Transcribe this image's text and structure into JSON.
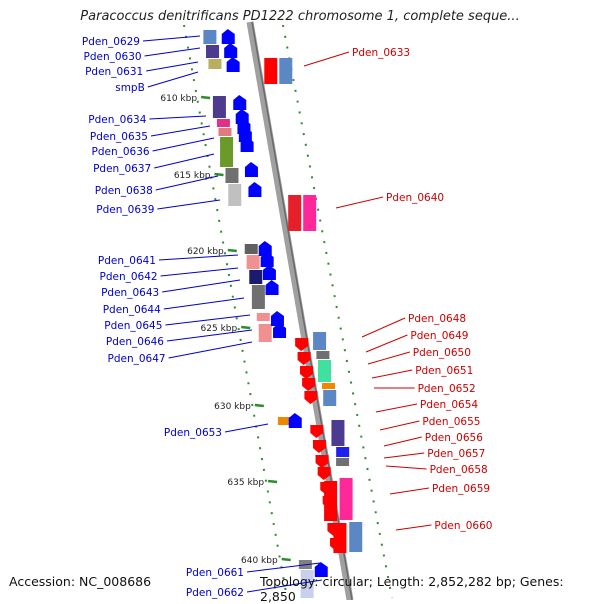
{
  "title": "Paracoccus denitrificans PD1222 chromosome 1, complete seque...",
  "accession_label": "Accession: NC_008686",
  "topology_label": "Topology: circular; Length: 2,852,282 bp; Genes: 2,850",
  "colors": {
    "left_label": "#0000cc",
    "right_label": "#cc0000",
    "backbone": "#8c8c8c",
    "kbp_tick": "#2e8b2e",
    "strand_forward_arrow": "#0000ff",
    "strand_reverse_arrow": "#ff0000"
  },
  "kbp_markers": [
    "610 kbp",
    "615 kbp",
    "620 kbp",
    "625 kbp",
    "630 kbp",
    "635 kbp",
    "640 kbp"
  ],
  "left_genes": [
    "Pden_0629",
    "Pden_0630",
    "Pden_0631",
    "smpB",
    "Pden_0634",
    "Pden_0635",
    "Pden_0636",
    "Pden_0637",
    "Pden_0638",
    "Pden_0639",
    "Pden_0641",
    "Pden_0642",
    "Pden_0643",
    "Pden_0644",
    "Pden_0645",
    "Pden_0646",
    "Pden_0647",
    "Pden_0653",
    "Pden_0661",
    "Pden_0662"
  ],
  "right_genes": [
    "Pden_0633",
    "Pden_0640",
    "Pden_0648",
    "Pden_0649",
    "Pden_0650",
    "Pden_0651",
    "Pden_0652",
    "Pden_0654",
    "Pden_0655",
    "Pden_0656",
    "Pden_0657",
    "Pden_0658",
    "Pden_0659",
    "Pden_0660"
  ]
}
